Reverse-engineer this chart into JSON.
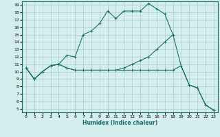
{
  "xlabel": "Humidex (Indice chaleur)",
  "bg_color": "#d4eeee",
  "grid_color": "#aacccc",
  "line_color": "#1a6b6b",
  "xlim": [
    -0.5,
    23.5
  ],
  "ylim": [
    4.5,
    19.5
  ],
  "yticks": [
    5,
    6,
    7,
    8,
    9,
    10,
    11,
    12,
    13,
    14,
    15,
    16,
    17,
    18,
    19
  ],
  "xticks": [
    0,
    1,
    2,
    3,
    4,
    5,
    6,
    7,
    8,
    9,
    10,
    11,
    12,
    13,
    14,
    15,
    16,
    17,
    18,
    19,
    20,
    21,
    22,
    23
  ],
  "line1_x": [
    0,
    1,
    2,
    3,
    4,
    5,
    6,
    7,
    8,
    9,
    10,
    11,
    12,
    13,
    14,
    15,
    16,
    17,
    18
  ],
  "line1_y": [
    10.5,
    9.0,
    10.0,
    10.8,
    11.0,
    12.2,
    12.0,
    15.0,
    15.5,
    16.5,
    18.2,
    17.2,
    18.2,
    18.2,
    18.2,
    19.2,
    18.5,
    17.8,
    15.0
  ],
  "line2_x": [
    0,
    1,
    2,
    3,
    4,
    5,
    6,
    7,
    8,
    9,
    10,
    11,
    12,
    13,
    14,
    15,
    16,
    17,
    18,
    19,
    20,
    21,
    22,
    23
  ],
  "line2_y": [
    10.5,
    9.0,
    10.0,
    10.8,
    11.0,
    10.5,
    10.2,
    10.2,
    10.2,
    10.2,
    10.2,
    10.2,
    10.5,
    11.0,
    11.5,
    12.0,
    13.0,
    14.0,
    15.0,
    10.8,
    8.2,
    7.8,
    5.5,
    4.8
  ],
  "line3_x": [
    0,
    1,
    2,
    3,
    4,
    5,
    6,
    7,
    8,
    9,
    10,
    11,
    12,
    13,
    14,
    15,
    16,
    17,
    18,
    19,
    20,
    21,
    22,
    23
  ],
  "line3_y": [
    10.5,
    9.0,
    10.0,
    10.8,
    11.0,
    10.5,
    10.2,
    10.2,
    10.2,
    10.2,
    10.2,
    10.2,
    10.2,
    10.2,
    10.2,
    10.2,
    10.2,
    10.2,
    10.2,
    10.8,
    8.2,
    7.8,
    5.5,
    4.8
  ]
}
